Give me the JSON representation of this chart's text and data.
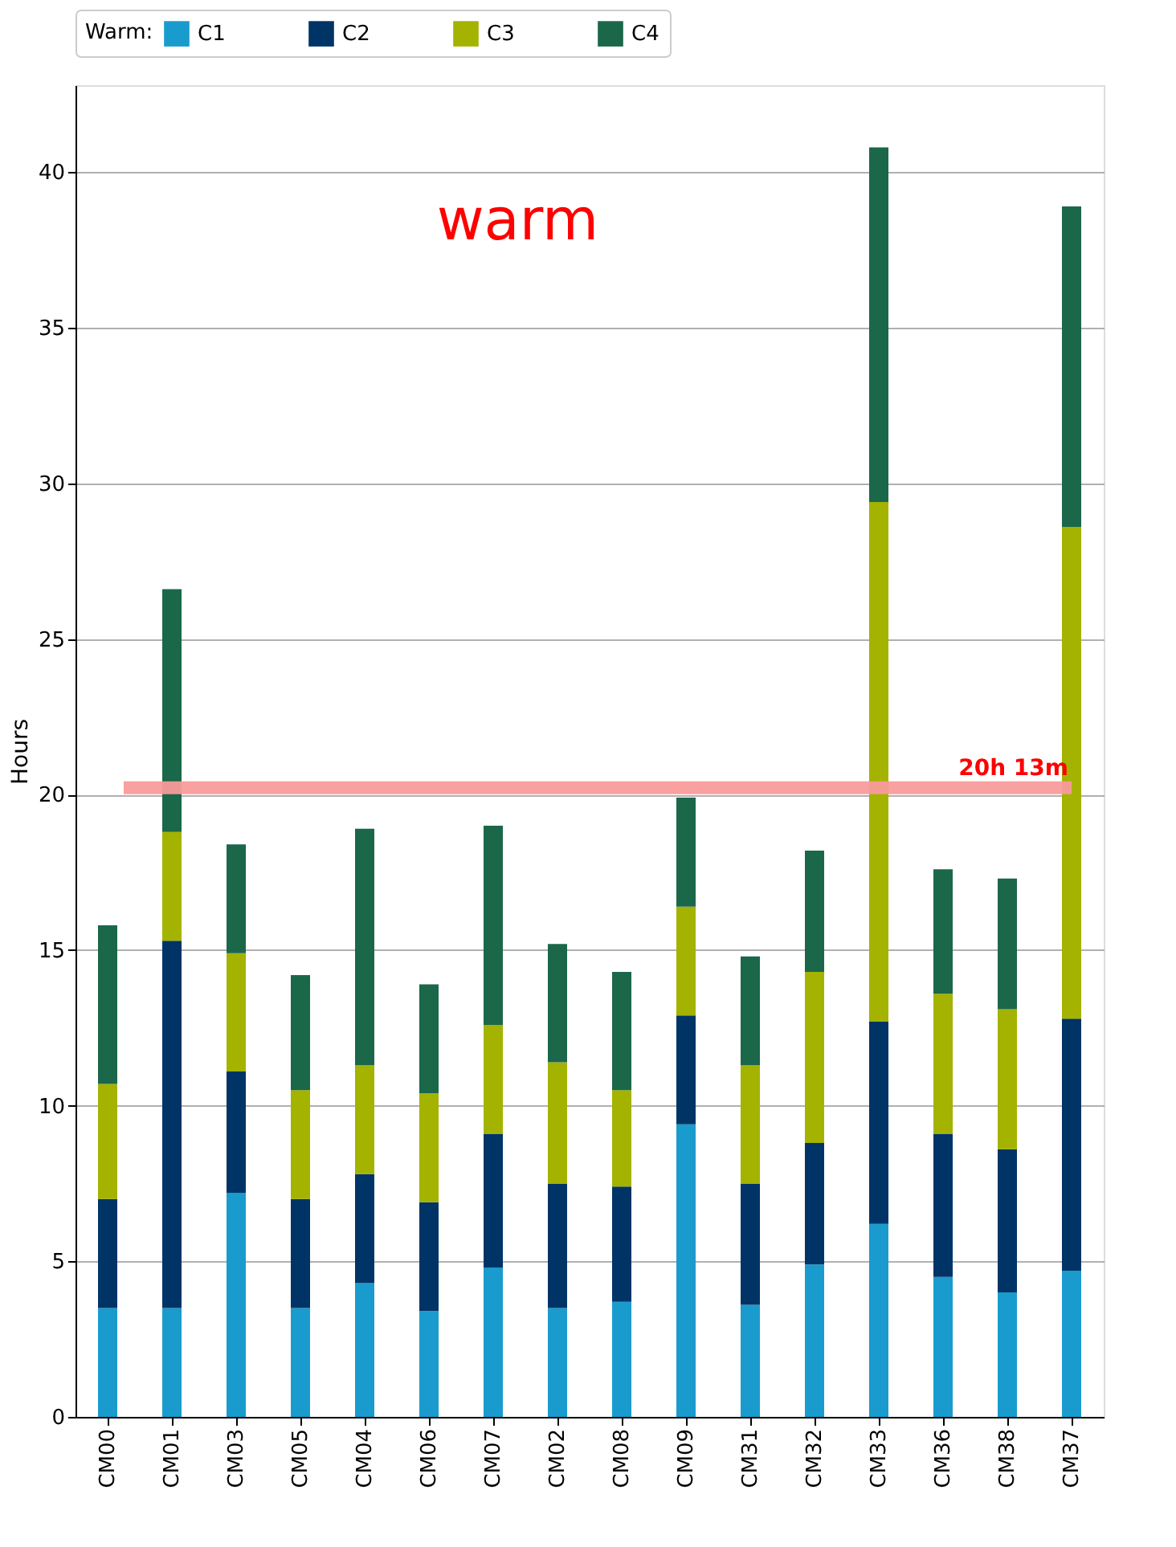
{
  "chart_data": {
    "type": "bar",
    "stacked": true,
    "ylabel": "Hours",
    "legend_title": "Warm:",
    "legend": "top",
    "categories": [
      "CM00",
      "CM01",
      "CM03",
      "CM05",
      "CM04",
      "CM06",
      "CM07",
      "CM02",
      "CM08",
      "CM09",
      "CM31",
      "CM32",
      "CM33",
      "CM36",
      "CM38",
      "CM37"
    ],
    "series": [
      {
        "name": "C1",
        "color": "#1a9bcd",
        "values": [
          3.5,
          3.5,
          7.2,
          3.5,
          4.3,
          3.4,
          4.8,
          3.5,
          3.7,
          9.4,
          3.6,
          4.9,
          6.2,
          4.5,
          4.0,
          4.7
        ]
      },
      {
        "name": "C2",
        "color": "#003466",
        "values": [
          3.5,
          11.8,
          3.9,
          3.5,
          3.5,
          3.5,
          4.3,
          4.0,
          3.7,
          3.5,
          3.9,
          3.9,
          6.5,
          4.6,
          4.6,
          8.1
        ]
      },
      {
        "name": "C3",
        "color": "#a3b300",
        "values": [
          3.7,
          3.5,
          3.8,
          3.5,
          3.5,
          3.5,
          3.5,
          3.9,
          3.1,
          3.5,
          3.8,
          5.5,
          16.7,
          4.5,
          4.5,
          15.8
        ]
      },
      {
        "name": "C4",
        "color": "#1b674a",
        "values": [
          5.1,
          7.8,
          3.5,
          3.7,
          7.6,
          3.5,
          6.4,
          3.8,
          3.8,
          3.5,
          3.5,
          3.9,
          11.4,
          4.0,
          4.2,
          10.3
        ]
      }
    ],
    "ylim": [
      0,
      42.8
    ],
    "yticks": [
      0,
      5,
      10,
      15,
      20,
      25,
      30,
      35,
      40
    ],
    "grid": "y",
    "ref_lines": [
      {
        "axis": "y",
        "value": 20.22,
        "label": "20h 13m",
        "color": "#f99b9b"
      }
    ],
    "annotations": [
      "warm"
    ]
  }
}
